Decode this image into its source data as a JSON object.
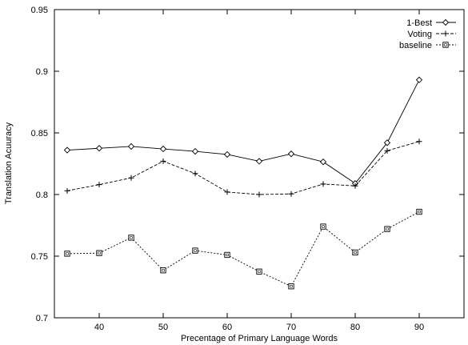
{
  "chart_data": {
    "type": "line",
    "title": "",
    "xlabel": "Precentage of Primary Language Words",
    "ylabel": "Translation Acuuracy",
    "xlim": [
      33,
      97
    ],
    "ylim": [
      0.7,
      0.95
    ],
    "xticks": [
      40,
      50,
      60,
      70,
      80,
      90
    ],
    "yticks": [
      0.7,
      0.75,
      0.8,
      0.85,
      0.9,
      0.95
    ],
    "legend_position": "top-right",
    "grid": false,
    "x": [
      35,
      40,
      45,
      50,
      55,
      60,
      65,
      70,
      75,
      80,
      85,
      90
    ],
    "series": [
      {
        "name": "1-Best",
        "marker": "diamond",
        "line_style": "solid",
        "values": [
          0.836,
          0.8375,
          0.839,
          0.837,
          0.835,
          0.8325,
          0.827,
          0.833,
          0.8265,
          0.809,
          0.842,
          0.893
        ]
      },
      {
        "name": "Voting",
        "marker": "plus",
        "line_style": "dashed",
        "values": [
          0.803,
          0.808,
          0.8135,
          0.827,
          0.817,
          0.802,
          0.8,
          0.8005,
          0.8085,
          0.807,
          0.8355,
          0.843
        ]
      },
      {
        "name": "baseline",
        "marker": "square",
        "line_style": "dotted",
        "values": [
          0.752,
          0.7525,
          0.765,
          0.7385,
          0.7545,
          0.751,
          0.7375,
          0.7255,
          0.774,
          0.753,
          0.772,
          0.786
        ]
      }
    ]
  }
}
